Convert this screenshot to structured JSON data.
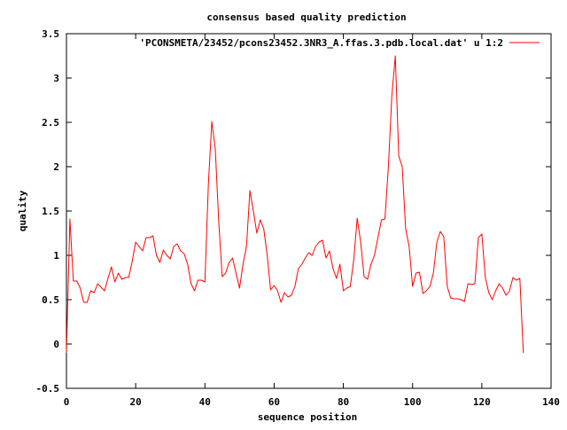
{
  "chart_data": {
    "type": "line",
    "title": "consensus based quality prediction",
    "xlabel": "sequence position",
    "ylabel": "quality",
    "xlim": [
      0,
      140
    ],
    "ylim": [
      -0.5,
      3.5
    ],
    "xticks": [
      0,
      20,
      40,
      60,
      80,
      100,
      120,
      140
    ],
    "xtick_labels": [
      "0",
      "20",
      "40",
      "60",
      "80",
      "100",
      "120",
      "140"
    ],
    "yticks": [
      -0.5,
      0,
      0.5,
      1,
      1.5,
      2,
      2.5,
      3,
      3.5
    ],
    "ytick_labels": [
      "-0.5",
      "0",
      "0.5",
      "1",
      "1.5",
      "2",
      "2.5",
      "3",
      "3.5"
    ],
    "grid": false,
    "legend_position": "top-right",
    "series": [
      {
        "name": "'PCONSMETA/23452/pcons23452.3NR3_A.ffas.3.pdb.local.dat' u 1:2",
        "color": "#ff0000",
        "x": [
          0,
          1,
          2,
          3,
          4,
          5,
          6,
          7,
          8,
          9,
          10,
          11,
          12,
          13,
          14,
          15,
          16,
          17,
          18,
          19,
          20,
          21,
          22,
          23,
          24,
          25,
          26,
          27,
          28,
          29,
          30,
          31,
          32,
          33,
          34,
          35,
          36,
          37,
          38,
          39,
          40,
          41,
          42,
          43,
          44,
          45,
          46,
          47,
          48,
          49,
          50,
          51,
          52,
          53,
          54,
          55,
          56,
          57,
          58,
          59,
          60,
          61,
          62,
          63,
          64,
          65,
          66,
          67,
          68,
          69,
          70,
          71,
          72,
          73,
          74,
          75,
          76,
          77,
          78,
          79,
          80,
          81,
          82,
          83,
          84,
          85,
          86,
          87,
          88,
          89,
          90,
          91,
          92,
          93,
          94,
          95,
          96,
          97,
          98,
          99,
          100,
          101,
          102,
          103,
          104,
          105,
          106,
          107,
          108,
          109,
          110,
          111,
          112,
          113,
          114,
          115,
          116,
          117,
          118,
          119,
          120,
          121,
          122,
          123,
          124,
          125,
          126,
          127,
          128,
          129,
          130,
          131,
          132
        ],
        "y": [
          -0.1,
          1.41,
          0.71,
          0.71,
          0.63,
          0.47,
          0.47,
          0.6,
          0.58,
          0.68,
          0.64,
          0.6,
          0.74,
          0.87,
          0.7,
          0.8,
          0.73,
          0.75,
          0.75,
          0.93,
          1.15,
          1.1,
          1.05,
          1.2,
          1.2,
          1.22,
          1.0,
          0.92,
          1.06,
          1.0,
          0.96,
          1.1,
          1.13,
          1.05,
          1.02,
          0.9,
          0.68,
          0.6,
          0.72,
          0.72,
          0.7,
          1.8,
          2.51,
          2.2,
          1.38,
          0.76,
          0.8,
          0.92,
          0.97,
          0.8,
          0.63,
          0.9,
          1.1,
          1.73,
          1.5,
          1.25,
          1.4,
          1.3,
          1.0,
          0.61,
          0.66,
          0.6,
          0.47,
          0.58,
          0.53,
          0.55,
          0.65,
          0.85,
          0.9,
          0.97,
          1.03,
          1.0,
          1.1,
          1.15,
          1.17,
          0.97,
          1.05,
          0.85,
          0.74,
          0.9,
          0.6,
          0.63,
          0.65,
          0.95,
          1.42,
          1.15,
          0.76,
          0.73,
          0.9,
          1.0,
          1.2,
          1.4,
          1.41,
          2.0,
          2.8,
          3.25,
          2.12,
          2.0,
          1.3,
          1.1,
          0.65,
          0.8,
          0.81,
          0.57,
          0.6,
          0.65,
          0.8,
          1.15,
          1.27,
          1.21,
          0.65,
          0.52,
          0.51,
          0.51,
          0.5,
          0.48,
          0.68,
          0.67,
          0.68,
          1.2,
          1.24,
          0.75,
          0.58,
          0.5,
          0.6,
          0.68,
          0.63,
          0.55,
          0.6,
          0.75,
          0.72,
          0.74,
          -0.1
        ]
      }
    ]
  }
}
